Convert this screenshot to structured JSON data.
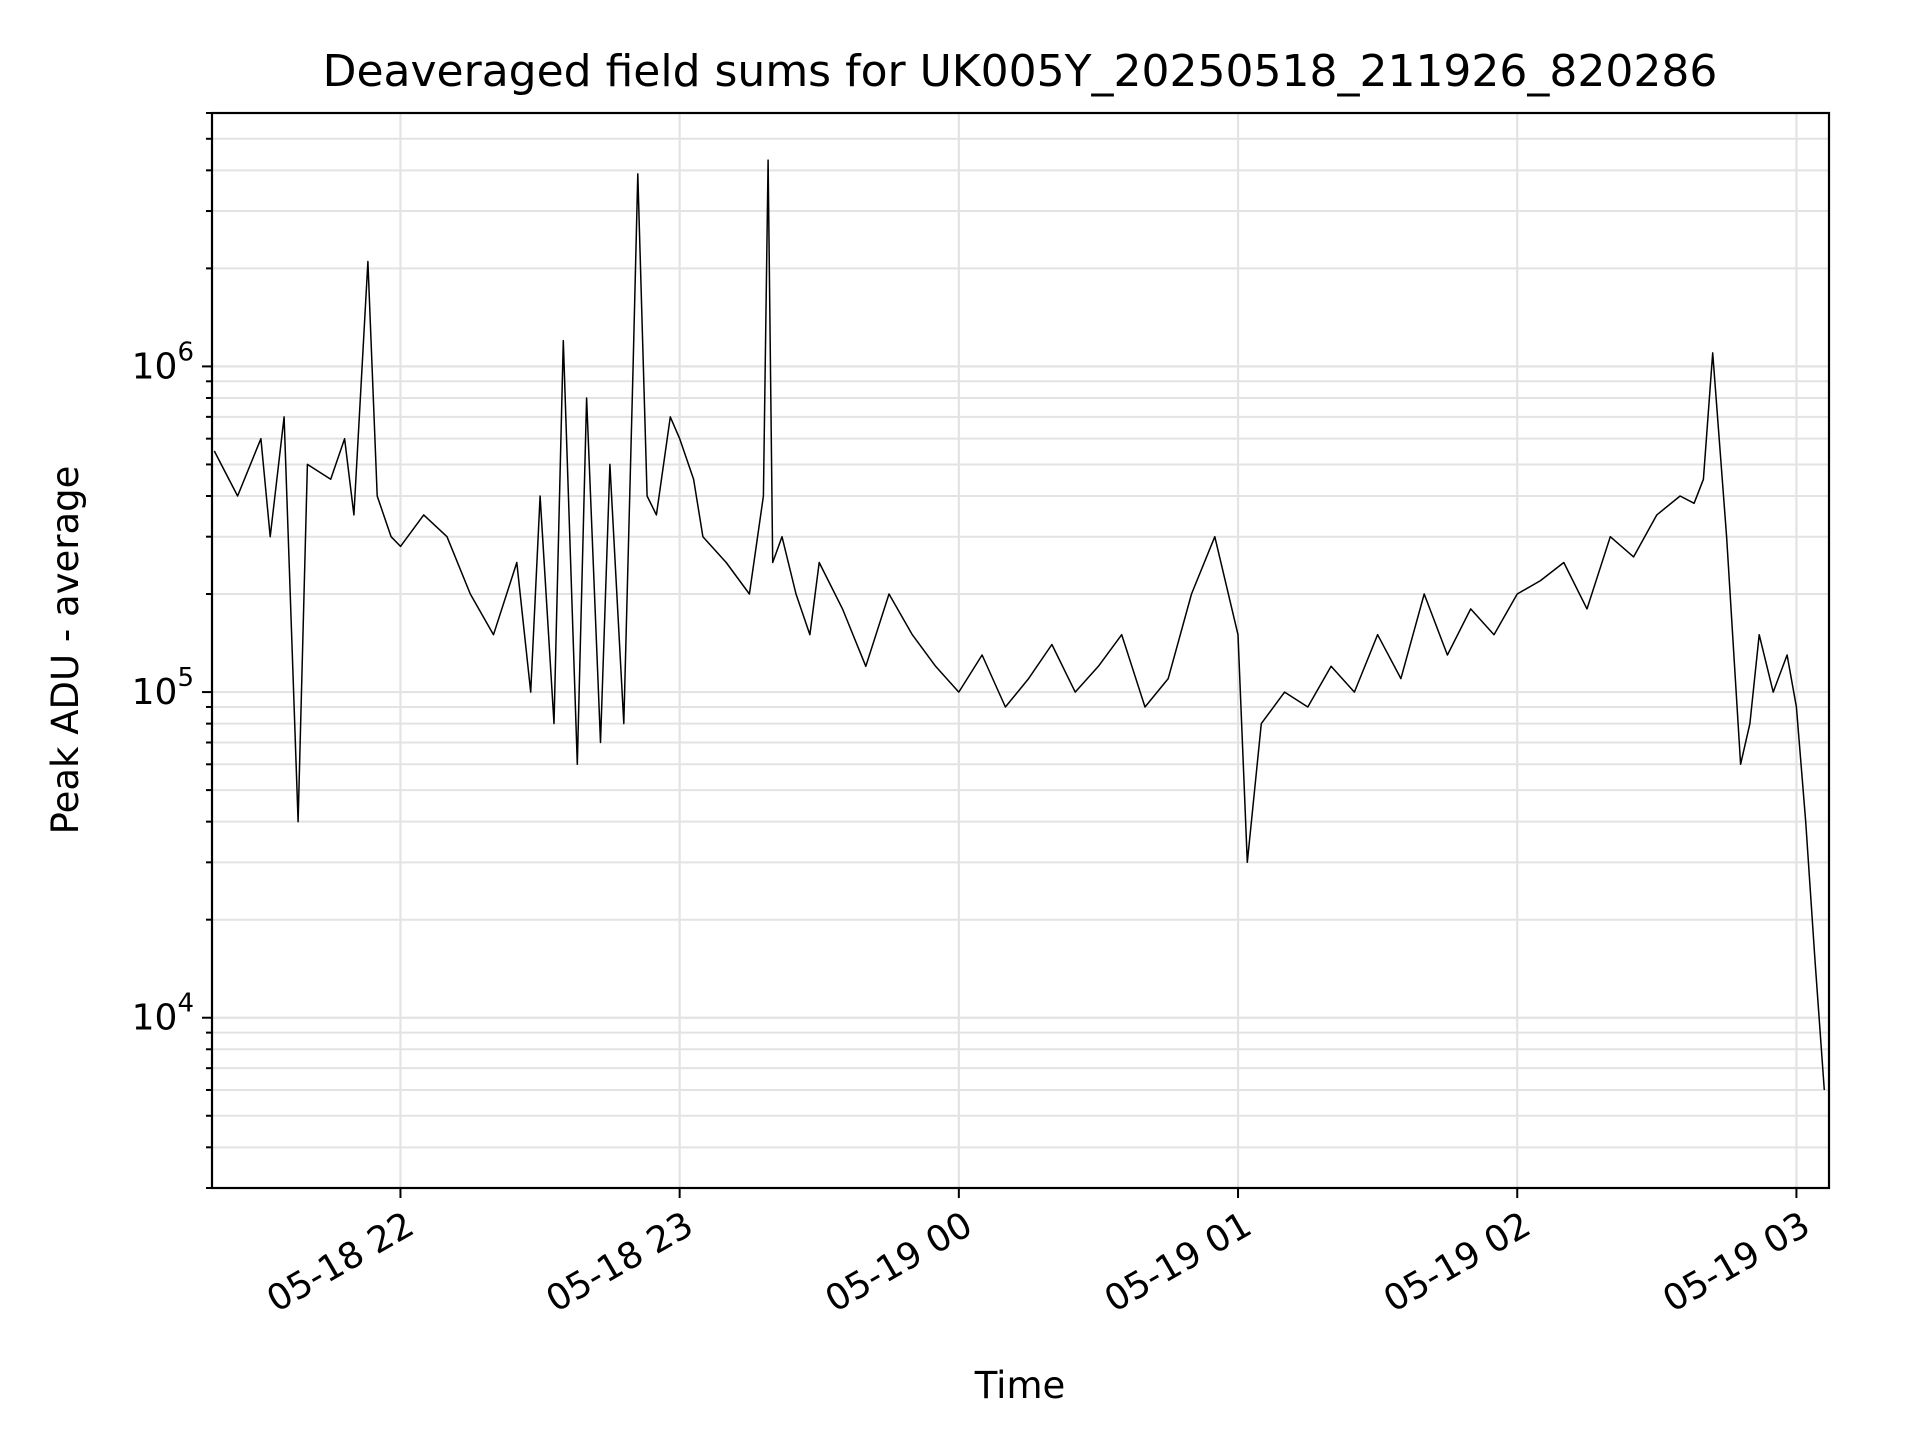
{
  "chart_data": {
    "type": "line",
    "title": "Deaveraged field sums for UK005Y_20250518_211926_820286",
    "xlabel": "Time",
    "ylabel": "Peak ADU - average",
    "yscale": "log",
    "ylim": [
      3000,
      6000000
    ],
    "xlim": [
      "2025-05-18 21:19:30",
      "2025-05-19 03:07:00"
    ],
    "x_ticks": [
      {
        "value": "2025-05-18 22:00",
        "label": "05-18 22"
      },
      {
        "value": "2025-05-18 23:00",
        "label": "05-18 23"
      },
      {
        "value": "2025-05-19 00:00",
        "label": "05-19 00"
      },
      {
        "value": "2025-05-19 01:00",
        "label": "05-19 01"
      },
      {
        "value": "2025-05-19 02:00",
        "label": "05-19 02"
      },
      {
        "value": "2025-05-19 03:00",
        "label": "05-19 03"
      }
    ],
    "y_ticks": [
      {
        "value": 10000,
        "base": "10",
        "exp": "4"
      },
      {
        "value": 100000,
        "base": "10",
        "exp": "5"
      },
      {
        "value": 1000000,
        "base": "10",
        "exp": "6"
      }
    ],
    "grid": true,
    "line_color": "#000000",
    "series": [
      {
        "x": [
          "2025-05-18 21:20",
          "2025-05-18 21:25",
          "2025-05-18 21:30",
          "2025-05-18 21:32",
          "2025-05-18 21:35",
          "2025-05-18 21:38",
          "2025-05-18 21:40",
          "2025-05-18 21:45",
          "2025-05-18 21:48",
          "2025-05-18 21:50",
          "2025-05-18 21:53",
          "2025-05-18 21:55",
          "2025-05-18 21:58",
          "2025-05-18 22:00",
          "2025-05-18 22:05",
          "2025-05-18 22:10",
          "2025-05-18 22:15",
          "2025-05-18 22:20",
          "2025-05-18 22:25",
          "2025-05-18 22:28",
          "2025-05-18 22:30",
          "2025-05-18 22:33",
          "2025-05-18 22:35",
          "2025-05-18 22:38",
          "2025-05-18 22:40",
          "2025-05-18 22:43",
          "2025-05-18 22:45",
          "2025-05-18 22:48",
          "2025-05-18 22:50",
          "2025-05-18 22:51",
          "2025-05-18 22:53",
          "2025-05-18 22:55",
          "2025-05-18 22:58",
          "2025-05-18 23:00",
          "2025-05-18 23:03",
          "2025-05-18 23:05",
          "2025-05-18 23:10",
          "2025-05-18 23:15",
          "2025-05-18 23:18",
          "2025-05-18 23:19",
          "2025-05-18 23:20",
          "2025-05-18 23:22",
          "2025-05-18 23:25",
          "2025-05-18 23:28",
          "2025-05-18 23:30",
          "2025-05-18 23:35",
          "2025-05-18 23:40",
          "2025-05-18 23:45",
          "2025-05-18 23:50",
          "2025-05-18 23:55",
          "2025-05-19 00:00",
          "2025-05-19 00:05",
          "2025-05-19 00:10",
          "2025-05-19 00:15",
          "2025-05-19 00:20",
          "2025-05-19 00:25",
          "2025-05-19 00:30",
          "2025-05-19 00:35",
          "2025-05-19 00:40",
          "2025-05-19 00:45",
          "2025-05-19 00:50",
          "2025-05-19 00:55",
          "2025-05-19 01:00",
          "2025-05-19 01:02",
          "2025-05-19 01:05",
          "2025-05-19 01:10",
          "2025-05-19 01:15",
          "2025-05-19 01:20",
          "2025-05-19 01:25",
          "2025-05-19 01:30",
          "2025-05-19 01:35",
          "2025-05-19 01:40",
          "2025-05-19 01:45",
          "2025-05-19 01:50",
          "2025-05-19 01:55",
          "2025-05-19 02:00",
          "2025-05-19 02:05",
          "2025-05-19 02:10",
          "2025-05-19 02:15",
          "2025-05-19 02:20",
          "2025-05-19 02:25",
          "2025-05-19 02:30",
          "2025-05-19 02:35",
          "2025-05-19 02:38",
          "2025-05-19 02:40",
          "2025-05-19 02:42",
          "2025-05-19 02:45",
          "2025-05-19 02:48",
          "2025-05-19 02:50",
          "2025-05-19 02:52",
          "2025-05-19 02:55",
          "2025-05-19 02:58",
          "2025-05-19 03:00",
          "2025-05-19 03:02",
          "2025-05-19 03:04",
          "2025-05-19 03:06"
        ],
        "y": [
          550000,
          400000,
          600000,
          300000,
          700000,
          40000,
          500000,
          450000,
          600000,
          350000,
          2100000,
          400000,
          300000,
          280000,
          350000,
          300000,
          200000,
          150000,
          250000,
          100000,
          400000,
          80000,
          1200000,
          60000,
          800000,
          70000,
          500000,
          80000,
          1000000,
          3900000,
          400000,
          350000,
          700000,
          600000,
          450000,
          300000,
          250000,
          200000,
          400000,
          4300000,
          250000,
          300000,
          200000,
          150000,
          250000,
          180000,
          120000,
          200000,
          150000,
          120000,
          100000,
          130000,
          90000,
          110000,
          140000,
          100000,
          120000,
          150000,
          90000,
          110000,
          200000,
          300000,
          150000,
          30000,
          80000,
          100000,
          90000,
          120000,
          100000,
          150000,
          110000,
          200000,
          130000,
          180000,
          150000,
          200000,
          220000,
          250000,
          180000,
          300000,
          260000,
          350000,
          400000,
          380000,
          450000,
          1100000,
          300000,
          60000,
          80000,
          150000,
          100000,
          130000,
          90000,
          40000,
          15000,
          6000
        ]
      }
    ]
  }
}
